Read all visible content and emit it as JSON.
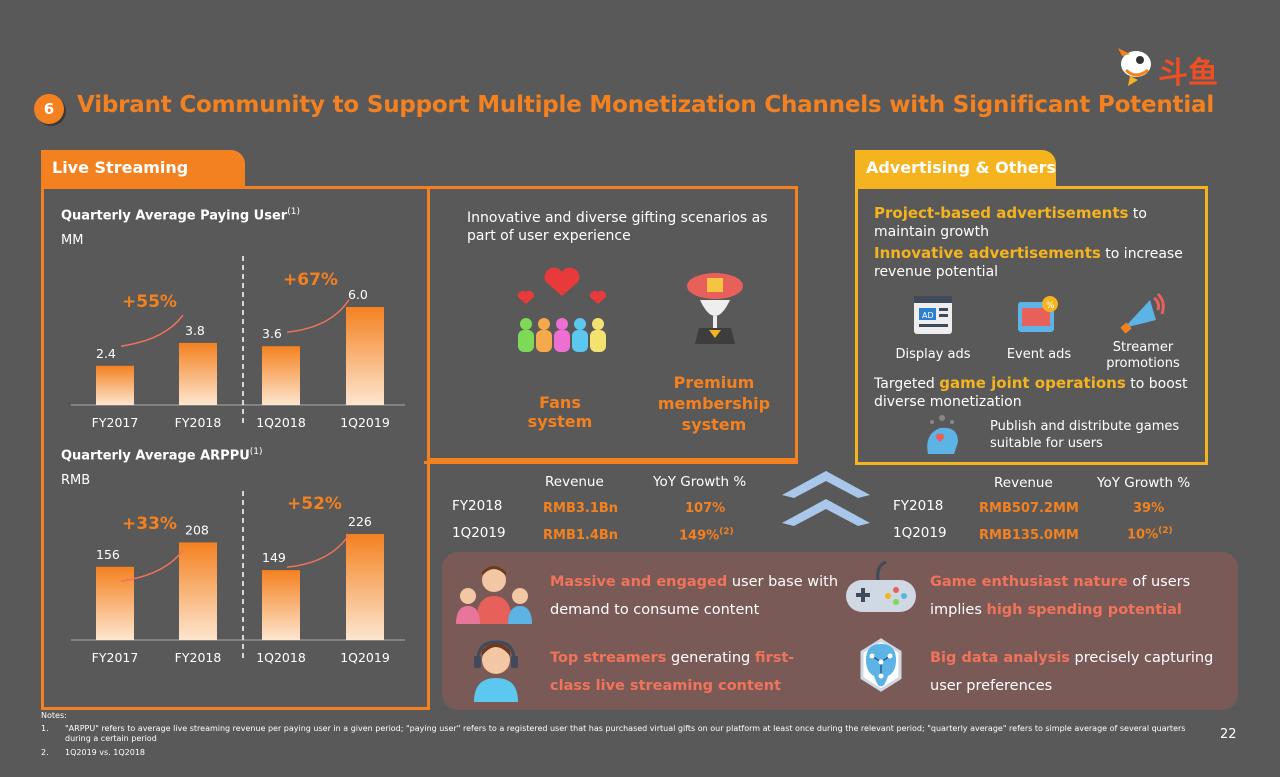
{
  "section_number": "6",
  "title": "Vibrant Community to Support Multiple Monetization Channels with Significant Potential",
  "logo_text": "斗鱼",
  "live_tab": "Live Streaming",
  "adv_tab": "Advertising & Others",
  "chart1": {
    "title": "Quarterly Average Paying User",
    "sup": "(1)",
    "unit": "MM",
    "growth_left": "+55%",
    "growth_right": "+67%"
  },
  "chart2": {
    "title": "Quarterly Average ARPPU",
    "sup": "(1)",
    "unit": "RMB",
    "growth_left": "+33%",
    "growth_right": "+52%"
  },
  "chart_data": [
    {
      "type": "bar",
      "title": "Quarterly Average Paying User",
      "ylabel": "MM",
      "categories": [
        "FY2017",
        "FY2018",
        "1Q2018",
        "1Q2019"
      ],
      "values": [
        2.4,
        3.8,
        3.6,
        6.0
      ],
      "labels": [
        "2.4",
        "3.8",
        "3.6",
        "6.0"
      ],
      "annotations": [
        "+55%",
        "+67%"
      ]
    },
    {
      "type": "bar",
      "title": "Quarterly Average ARPPU",
      "ylabel": "RMB",
      "categories": [
        "FY2017",
        "FY2018",
        "1Q2018",
        "1Q2019"
      ],
      "values": [
        156,
        208,
        149,
        226
      ],
      "labels": [
        "156",
        "208",
        "149",
        "226"
      ],
      "annotations": [
        "+33%",
        "+52%"
      ]
    }
  ],
  "gifting": {
    "text": "Innovative and diverse gifting scenarios as part of user experience",
    "fans": "Fans system",
    "premium": "Premium membership system"
  },
  "live_table": {
    "h1": "Revenue",
    "h2": "YoY Growth %",
    "r1": [
      "FY2018",
      "RMB3.1Bn",
      "107%"
    ],
    "r2": [
      "1Q2019",
      "RMB1.4Bn",
      "149%"
    ],
    "r2sup": "(2)"
  },
  "adv_table": {
    "h1": "Revenue",
    "h2": "YoY Growth %",
    "r1": [
      "FY2018",
      "RMB507.2MM",
      "39%"
    ],
    "r2": [
      "1Q2019",
      "RMB135.0MM",
      "10%"
    ],
    "r2sup": "(2)"
  },
  "adv": {
    "p1_bold": "Project-based advertisements",
    "p1_rest": " to maintain growth",
    "p2_bold": "Innovative advertisements",
    "p2_rest": " to increase revenue potential",
    "icons": [
      "Display ads",
      "Event ads",
      "Streamer promotions"
    ],
    "p3_pre": "Targeted ",
    "p3_bold": "game joint operations",
    "p3_rest": " to boost diverse monetization",
    "publish": "Publish and distribute games suitable for users"
  },
  "bullets": [
    {
      "hl": "Massive and engaged",
      "rest": " user base with demand to consume content"
    },
    {
      "hl": "Game enthusiast nature",
      "rest": " of users implies ",
      "hl2": "high spending potential"
    },
    {
      "hl": "Top streamers",
      "rest": " generating ",
      "hl2": "first-class live streaming content"
    },
    {
      "hl": "Big data analysis",
      "rest": " precisely capturing user preferences"
    }
  ],
  "notes": {
    "header": "Notes:",
    "n1num": "1.",
    "n1": "\"ARPPU\" refers to average live streaming revenue per paying user in a given period; \"paying user\" refers to a registered user that has purchased virtual gifts on our platform at least once during the relevant period; \"quarterly average\" refers to simple average of several quarters during a certain period",
    "n2num": "2.",
    "n2": "1Q2019 vs. 1Q2018"
  },
  "page_number": "22"
}
